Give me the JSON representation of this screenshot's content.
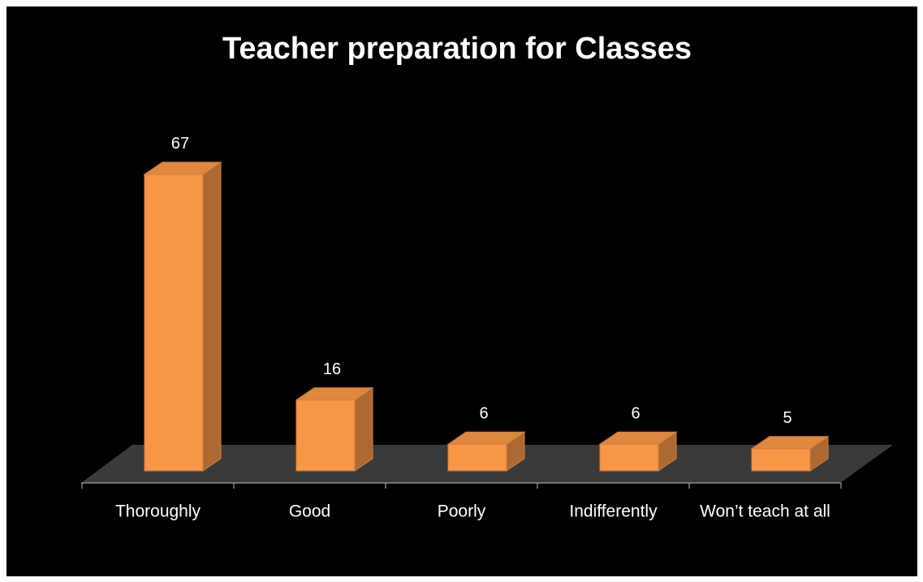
{
  "chart_data": {
    "type": "bar3d",
    "title": "Teacher preparation for Classes",
    "categories": [
      "Thoroughly",
      "Good",
      "Poorly",
      "Indifferently",
      "Won’t teach at all"
    ],
    "values": [
      67,
      16,
      6,
      6,
      5
    ],
    "color": "#f79646"
  }
}
